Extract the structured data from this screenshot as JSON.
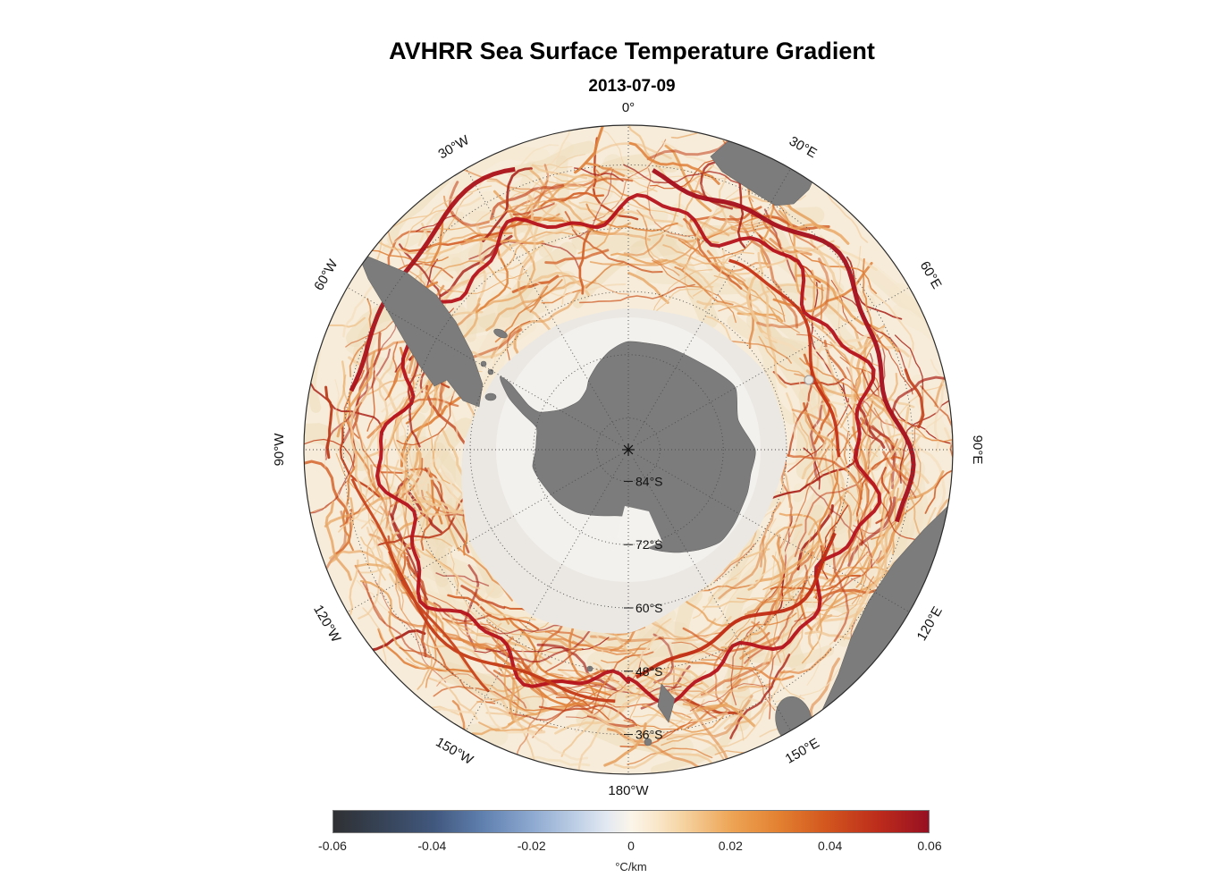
{
  "title": "AVHRR Sea Surface Temperature Gradient",
  "subtitle": "2013-07-09",
  "map": {
    "meridian_labels": [
      {
        "text": "0°",
        "az": 0
      },
      {
        "text": "30°E",
        "az": 30
      },
      {
        "text": "60°E",
        "az": 60
      },
      {
        "text": "90°E",
        "az": 90
      },
      {
        "text": "120°E",
        "az": 120
      },
      {
        "text": "150°E",
        "az": 150
      },
      {
        "text": "180°W",
        "az": 180
      },
      {
        "text": "150°W",
        "az": -150
      },
      {
        "text": "120°W",
        "az": -120
      },
      {
        "text": "90°W",
        "az": -90
      },
      {
        "text": "60°W",
        "az": -60
      },
      {
        "text": "30°W",
        "az": -30
      }
    ],
    "latitude_labels": [
      {
        "text": "84°S",
        "colat": 6
      },
      {
        "text": "72°S",
        "colat": 18
      },
      {
        "text": "60°S",
        "colat": 30
      },
      {
        "text": "48°S",
        "colat": 42
      },
      {
        "text": "36°S",
        "colat": 54
      }
    ],
    "colors": {
      "ocean": "#f7ecd9",
      "land": "#7c7c7c",
      "ice": "#ebe8e3",
      "front": "#b5121b"
    }
  },
  "colorbar": {
    "ticks": [
      "-0.06",
      "-0.04",
      "-0.02",
      "0",
      "0.02",
      "0.04",
      "0.06"
    ],
    "unit": "°C/km",
    "min": -0.06,
    "max": 0.06,
    "stops": [
      [
        "0%",
        "#2f3033"
      ],
      [
        "6%",
        "#343e4d"
      ],
      [
        "17%",
        "#41587e"
      ],
      [
        "25%",
        "#5f7fae"
      ],
      [
        "33%",
        "#8ba7cf"
      ],
      [
        "41%",
        "#bfd0e6"
      ],
      [
        "46%",
        "#e3e9f2"
      ],
      [
        "50%",
        "#fbf5e9"
      ],
      [
        "54%",
        "#fae8cd"
      ],
      [
        "58%",
        "#f6d7a8"
      ],
      [
        "67%",
        "#eda454"
      ],
      [
        "75%",
        "#e28030"
      ],
      [
        "83%",
        "#d2551e"
      ],
      [
        "92%",
        "#bb2a1b"
      ],
      [
        "100%",
        "#971023"
      ]
    ]
  }
}
